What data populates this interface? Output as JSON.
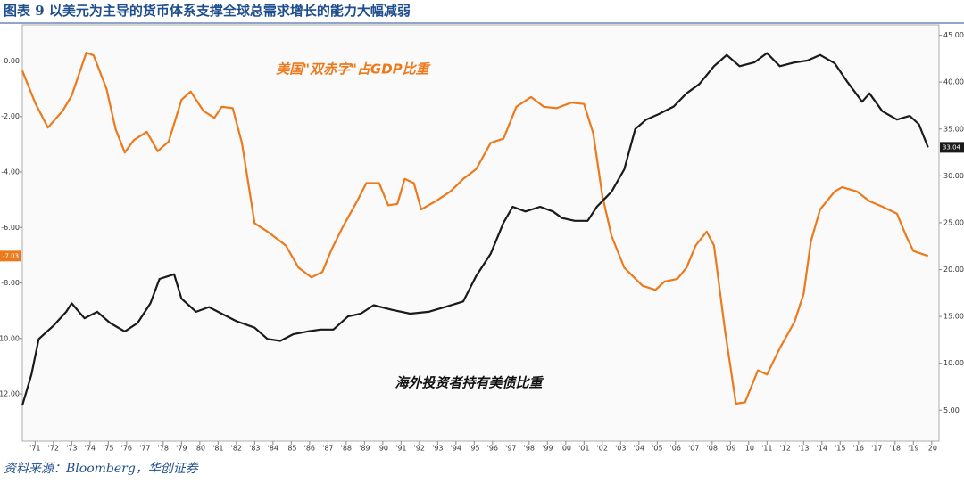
{
  "chart_data": {
    "type": "line",
    "title": "图表 9 以美元为主导的货币体系支撑全球总需求增长的能力大幅减弱",
    "source": "资料来源：Bloomberg，华创证券",
    "xlim": [
      1970.3,
      2020.4
    ],
    "xticks": [
      {
        "value": 1971,
        "label": "'71"
      },
      {
        "value": 1972,
        "label": "'72"
      },
      {
        "value": 1973,
        "label": "'73"
      },
      {
        "value": 1974,
        "label": "'74"
      },
      {
        "value": 1975,
        "label": "'75"
      },
      {
        "value": 1976,
        "label": "'76"
      },
      {
        "value": 1977,
        "label": "'77"
      },
      {
        "value": 1978,
        "label": "'78"
      },
      {
        "value": 1979,
        "label": "'79"
      },
      {
        "value": 1980,
        "label": "'80"
      },
      {
        "value": 1981,
        "label": "'81"
      },
      {
        "value": 1982,
        "label": "'82"
      },
      {
        "value": 1983,
        "label": "'83"
      },
      {
        "value": 1984,
        "label": "'84"
      },
      {
        "value": 1985,
        "label": "'85"
      },
      {
        "value": 1986,
        "label": "'86"
      },
      {
        "value": 1987,
        "label": "'87"
      },
      {
        "value": 1988,
        "label": "'88"
      },
      {
        "value": 1989,
        "label": "'89"
      },
      {
        "value": 1990,
        "label": "'90"
      },
      {
        "value": 1991,
        "label": "'91"
      },
      {
        "value": 1992,
        "label": "'92"
      },
      {
        "value": 1993,
        "label": "'93"
      },
      {
        "value": 1994,
        "label": "'94"
      },
      {
        "value": 1995,
        "label": "'95"
      },
      {
        "value": 1996,
        "label": "'96"
      },
      {
        "value": 1997,
        "label": "'97"
      },
      {
        "value": 1998,
        "label": "'98"
      },
      {
        "value": 1999,
        "label": "'99"
      },
      {
        "value": 2000,
        "label": "'00"
      },
      {
        "value": 2001,
        "label": "'01"
      },
      {
        "value": 2002,
        "label": "'02"
      },
      {
        "value": 2003,
        "label": "'03"
      },
      {
        "value": 2004,
        "label": "'04"
      },
      {
        "value": 2005,
        "label": "'05"
      },
      {
        "value": 2006,
        "label": "'06"
      },
      {
        "value": 2007,
        "label": "'07"
      },
      {
        "value": 2008,
        "label": "'08"
      },
      {
        "value": 2009,
        "label": "'09"
      },
      {
        "value": 2010,
        "label": "'10"
      },
      {
        "value": 2011,
        "label": "'11"
      },
      {
        "value": 2012,
        "label": "'12"
      },
      {
        "value": 2013,
        "label": "'13"
      },
      {
        "value": 2014,
        "label": "'14"
      },
      {
        "value": 2015,
        "label": "'15"
      },
      {
        "value": 2016,
        "label": "'16"
      },
      {
        "value": 2017,
        "label": "'17"
      },
      {
        "value": 2018,
        "label": "'18"
      },
      {
        "value": 2019,
        "label": "'19"
      },
      {
        "value": 2020,
        "label": "'20"
      }
    ],
    "ylim": [
      -13.7,
      1.3
    ],
    "yticks": [
      {
        "value": 0,
        "label": "0.00"
      },
      {
        "value": -2,
        "label": "-2.00"
      },
      {
        "value": -4,
        "label": "-4.00"
      },
      {
        "value": -6,
        "label": "-6.00"
      },
      {
        "value": -8,
        "label": "-8.00"
      },
      {
        "value": -10,
        "label": "-10.00"
      },
      {
        "value": -12,
        "label": "-12.00"
      }
    ],
    "y2lim": [
      1.7,
      46.1
    ],
    "y2ticks": [
      {
        "value": 45,
        "label": "45.00"
      },
      {
        "value": 40,
        "label": "40.00"
      },
      {
        "value": 35,
        "label": "35.00"
      },
      {
        "value": 30,
        "label": "30.00"
      },
      {
        "value": 25,
        "label": "25.00"
      },
      {
        "value": 20,
        "label": "20.00"
      },
      {
        "value": 15,
        "label": "15.00"
      },
      {
        "value": 10,
        "label": "10.00"
      },
      {
        "value": 5,
        "label": "5.00"
      }
    ],
    "series": [
      {
        "name": "美国\"双赤字\"占GDP比重",
        "color": "#ec7a1c",
        "axis": "y",
        "x": [
          1970.3,
          1971,
          1971.7,
          1972.5,
          1973,
          1973.8,
          1974.2,
          1974.9,
          1975.4,
          1975.9,
          1976.4,
          1977.1,
          1977.7,
          1978.3,
          1979.0,
          1979.5,
          1980.2,
          1980.8,
          1981.2,
          1981.8,
          1982.3,
          1983.0,
          1983.7,
          1984.7,
          1985.4,
          1986.1,
          1986.7,
          1987.2,
          1987.8,
          1988.6,
          1989.1,
          1989.8,
          1990.3,
          1990.8,
          1991.2,
          1991.7,
          1992.1,
          1992.9,
          1993.7,
          1994.4,
          1995.1,
          1995.9,
          1996.6,
          1997.3,
          1998.1,
          1998.8,
          1999.5,
          2000.3,
          2001.0,
          2001.5,
          2002.0,
          2002.5,
          2003.2,
          2004.2,
          2004.9,
          2005.4,
          2006.1,
          2006.6,
          2007.1,
          2007.7,
          2008.1,
          2008.7,
          2009.3,
          2009.8,
          2010.5,
          2011.0,
          2011.7,
          2012.5,
          2013.0,
          2013.4,
          2013.9,
          2014.7,
          2015.1,
          2015.9,
          2016.6,
          2017.3,
          2018.1,
          2018.6,
          2019.0,
          2019.8
        ],
        "values": [
          -0.35,
          -1.5,
          -2.4,
          -1.8,
          -1.25,
          0.3,
          0.2,
          -1.0,
          -2.45,
          -3.3,
          -2.85,
          -2.55,
          -3.25,
          -2.9,
          -1.4,
          -1.1,
          -1.8,
          -2.05,
          -1.65,
          -1.7,
          -2.95,
          -5.85,
          -6.15,
          -6.65,
          -7.45,
          -7.8,
          -7.6,
          -6.8,
          -6.0,
          -5.05,
          -4.4,
          -4.4,
          -5.2,
          -5.15,
          -4.25,
          -4.4,
          -5.35,
          -5.05,
          -4.7,
          -4.25,
          -3.9,
          -2.95,
          -2.8,
          -1.65,
          -1.3,
          -1.65,
          -1.7,
          -1.5,
          -1.55,
          -2.6,
          -4.85,
          -6.3,
          -7.45,
          -8.1,
          -8.25,
          -7.95,
          -7.85,
          -7.45,
          -6.65,
          -6.15,
          -6.65,
          -9.7,
          -12.35,
          -12.3,
          -11.15,
          -11.3,
          -10.35,
          -9.4,
          -8.4,
          -6.5,
          -5.35,
          -4.7,
          -4.55,
          -4.7,
          -5.05,
          -5.25,
          -5.5,
          -6.3,
          -6.85,
          -7.03
        ]
      },
      {
        "name": "海外投资者持有美债比重",
        "color": "#1a1a1a",
        "axis": "y2",
        "x": [
          1970.3,
          1970.8,
          1971.2,
          1972.0,
          1972.7,
          1973.0,
          1973.7,
          1974.4,
          1975.1,
          1975.9,
          1976.6,
          1977.3,
          1977.8,
          1978.6,
          1979.0,
          1979.8,
          1980.5,
          1981.2,
          1982.0,
          1983.0,
          1983.7,
          1984.4,
          1985.1,
          1985.9,
          1986.6,
          1987.3,
          1988.1,
          1988.8,
          1989.5,
          1990.5,
          1991.5,
          1992.5,
          1993.4,
          1994.4,
          1995.1,
          1995.9,
          1996.6,
          1997.1,
          1997.8,
          1998.6,
          1999.3,
          1999.8,
          2000.5,
          2001.2,
          2001.7,
          2002.5,
          2003.2,
          2003.8,
          2004.4,
          2005.1,
          2005.9,
          2006.6,
          2007.3,
          2008.1,
          2008.8,
          2009.5,
          2010.3,
          2011.0,
          2011.7,
          2012.5,
          2013.2,
          2013.9,
          2014.7,
          2015.4,
          2016.2,
          2016.6,
          2017.3,
          2018.1,
          2018.8,
          2019.3,
          2019.8
        ],
        "values": [
          5.5,
          8.8,
          12.6,
          14.0,
          15.5,
          16.4,
          14.8,
          15.5,
          14.3,
          13.4,
          14.3,
          16.4,
          19.0,
          19.5,
          16.9,
          15.5,
          16.0,
          15.3,
          14.5,
          13.8,
          12.6,
          12.4,
          13.1,
          13.4,
          13.6,
          13.6,
          15.0,
          15.3,
          16.2,
          15.7,
          15.3,
          15.5,
          16.0,
          16.6,
          19.3,
          21.7,
          25.0,
          26.7,
          26.2,
          26.7,
          26.2,
          25.5,
          25.2,
          25.2,
          26.7,
          28.3,
          30.7,
          35.0,
          36.0,
          36.6,
          37.4,
          38.8,
          39.8,
          41.7,
          42.9,
          41.7,
          42.1,
          43.1,
          41.7,
          42.1,
          42.3,
          42.9,
          42.0,
          40.0,
          37.9,
          38.8,
          36.9,
          36.0,
          36.4,
          35.5,
          33.04
        ]
      }
    ]
  }
}
